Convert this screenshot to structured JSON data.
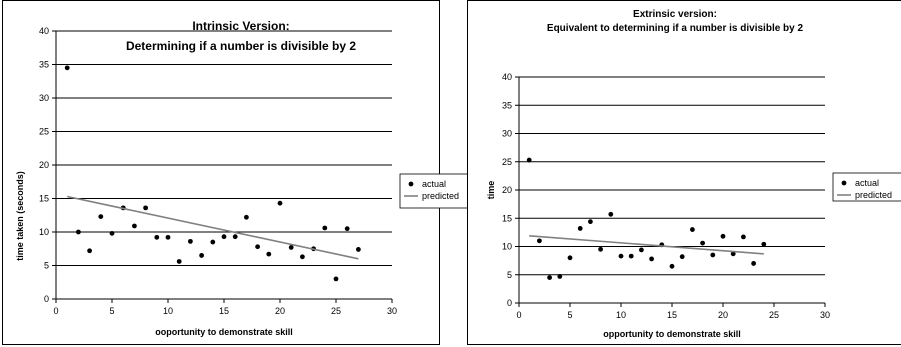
{
  "chart_data": [
    {
      "type": "scatter",
      "title": [
        "Intrinsic Version:",
        "Determining if a number is divisible by 2"
      ],
      "xlabel": "ooportunity to demonstrate skill",
      "ylabel": "time taken (seconds)",
      "xlim": [
        0,
        30
      ],
      "ylim": [
        0,
        40
      ],
      "xticks": [
        0,
        5,
        10,
        15,
        20,
        25,
        30
      ],
      "yticks": [
        0,
        5,
        10,
        15,
        20,
        25,
        30,
        35,
        40
      ],
      "grid": "horizontal",
      "legend_position": "right",
      "series": [
        {
          "name": "actual",
          "mark": "point",
          "color": "#000000",
          "x": [
            1,
            2,
            3,
            4,
            5,
            6,
            7,
            8,
            9,
            10,
            11,
            12,
            13,
            14,
            15,
            16,
            17,
            18,
            19,
            20,
            21,
            22,
            23,
            24,
            25,
            26,
            27
          ],
          "y": [
            34.5,
            10,
            7.2,
            12.3,
            9.8,
            13.6,
            10.9,
            13.6,
            9.2,
            9.2,
            5.6,
            8.6,
            6.5,
            8.5,
            9.3,
            9.3,
            12.2,
            7.8,
            6.7,
            14.3,
            7.7,
            6.3,
            7.5,
            10.6,
            3,
            10.5,
            7.4
          ]
        },
        {
          "name": "predicted",
          "mark": "line",
          "color": "#808080",
          "x": [
            1,
            27
          ],
          "y": [
            15.3,
            6.0
          ]
        }
      ]
    },
    {
      "type": "scatter",
      "title": [
        "Extrinsic version:",
        "Equivalent to determining if a number is divisible by 2"
      ],
      "xlabel": "opportunity to demonstrate skill",
      "ylabel": "time",
      "xlim": [
        0,
        30
      ],
      "ylim": [
        0,
        40
      ],
      "xticks": [
        0,
        5,
        10,
        15,
        20,
        25,
        30
      ],
      "yticks": [
        0,
        5,
        10,
        15,
        20,
        25,
        30,
        35,
        40
      ],
      "grid": "horizontal",
      "legend_position": "right",
      "series": [
        {
          "name": "actual",
          "mark": "point",
          "color": "#000000",
          "x": [
            1,
            2,
            3,
            4,
            5,
            6,
            7,
            8,
            9,
            10,
            11,
            12,
            13,
            14,
            15,
            16,
            17,
            18,
            19,
            20,
            21,
            22,
            23,
            24
          ],
          "y": [
            25.3,
            11,
            4.5,
            4.7,
            8,
            13.2,
            14.4,
            9.5,
            15.7,
            8.3,
            8.3,
            9.4,
            7.8,
            10.3,
            6.5,
            8.2,
            13,
            10.6,
            8.5,
            11.8,
            8.7,
            11.7,
            7,
            10.4
          ]
        },
        {
          "name": "predicted",
          "mark": "line",
          "color": "#808080",
          "x": [
            1,
            24
          ],
          "y": [
            11.9,
            8.7
          ]
        }
      ]
    }
  ]
}
